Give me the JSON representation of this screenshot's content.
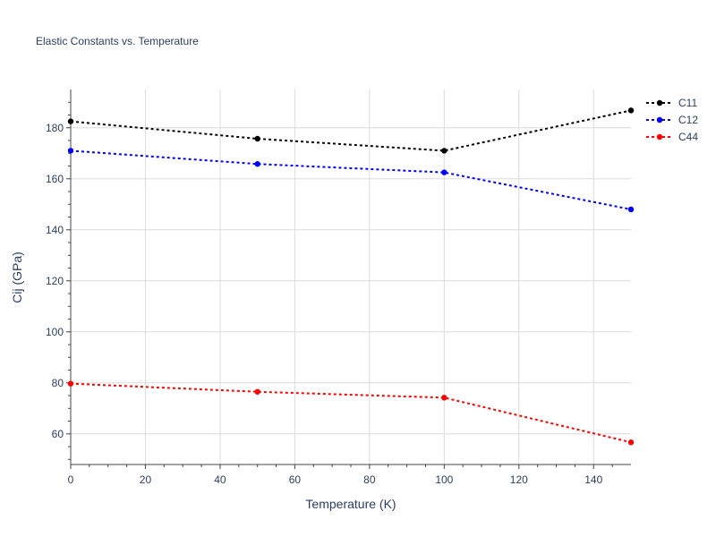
{
  "chart_data": {
    "type": "line",
    "title": "Elastic Constants vs. Temperature",
    "xlabel": "Temperature (K)",
    "ylabel": "Cij (GPa)",
    "xlim": [
      0,
      150
    ],
    "ylim": [
      48,
      195
    ],
    "x_ticks": [
      0,
      20,
      40,
      60,
      80,
      100,
      120,
      140
    ],
    "y_ticks": [
      60,
      80,
      100,
      120,
      140,
      160,
      180
    ],
    "grid": true,
    "legend_position": "top-right",
    "line_style": "dotted with markers",
    "x": [
      0,
      50,
      100,
      150
    ],
    "series": [
      {
        "name": "C11",
        "color": "#000000",
        "values": [
          182.5,
          175.7,
          171.0,
          186.8
        ]
      },
      {
        "name": "C12",
        "color": "#0000ff",
        "values": [
          171.0,
          165.8,
          162.5,
          148.0
        ]
      },
      {
        "name": "C44",
        "color": "#ff0000",
        "values": [
          79.7,
          76.5,
          74.2,
          56.7
        ]
      }
    ]
  }
}
